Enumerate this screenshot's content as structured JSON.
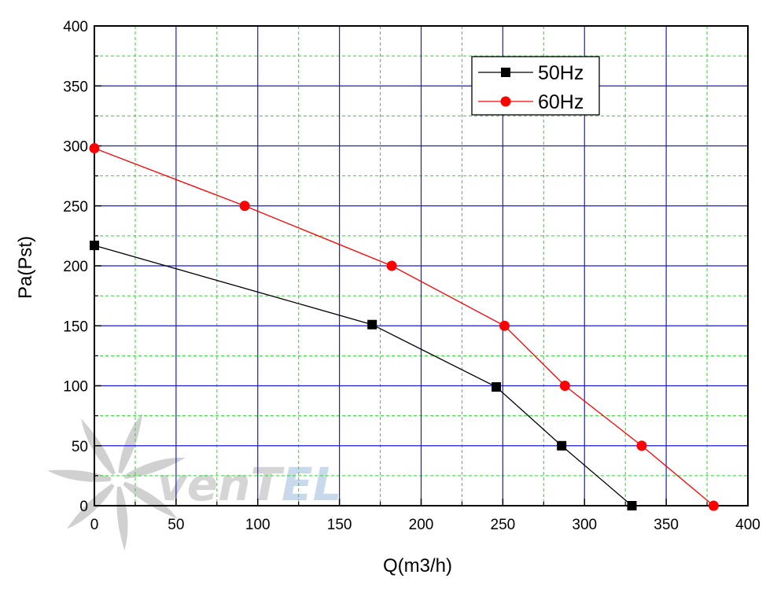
{
  "watermark": {
    "text_main": "venT",
    "text_accent": "EL",
    "main_color": "#c8c8c8",
    "accent_color": "#b8cde6"
  },
  "chart_data": {
    "type": "line",
    "title": "",
    "xlabel": "Q(m3/h)",
    "ylabel": "Pa(Pst)",
    "xlim": [
      0,
      400
    ],
    "ylim": [
      0,
      400
    ],
    "xticks": [
      0,
      50,
      100,
      150,
      200,
      250,
      300,
      350,
      400
    ],
    "yticks": [
      0,
      50,
      100,
      150,
      200,
      250,
      300,
      350,
      400
    ],
    "major_grid_color": "#1a1ad8",
    "minor_grid_color": "#22dd22",
    "grid": true,
    "legend_position": "top-right",
    "series": [
      {
        "name": "50Hz",
        "color": "#000000",
        "marker": "square",
        "x": [
          0,
          170,
          246,
          286,
          329
        ],
        "y": [
          217,
          151,
          99,
          50,
          0
        ]
      },
      {
        "name": "60Hz",
        "color": "#ff0000",
        "marker": "circle",
        "x": [
          0,
          92,
          182,
          251,
          288,
          335,
          379
        ],
        "y": [
          298,
          250,
          200,
          150,
          100,
          50,
          0
        ]
      }
    ]
  }
}
